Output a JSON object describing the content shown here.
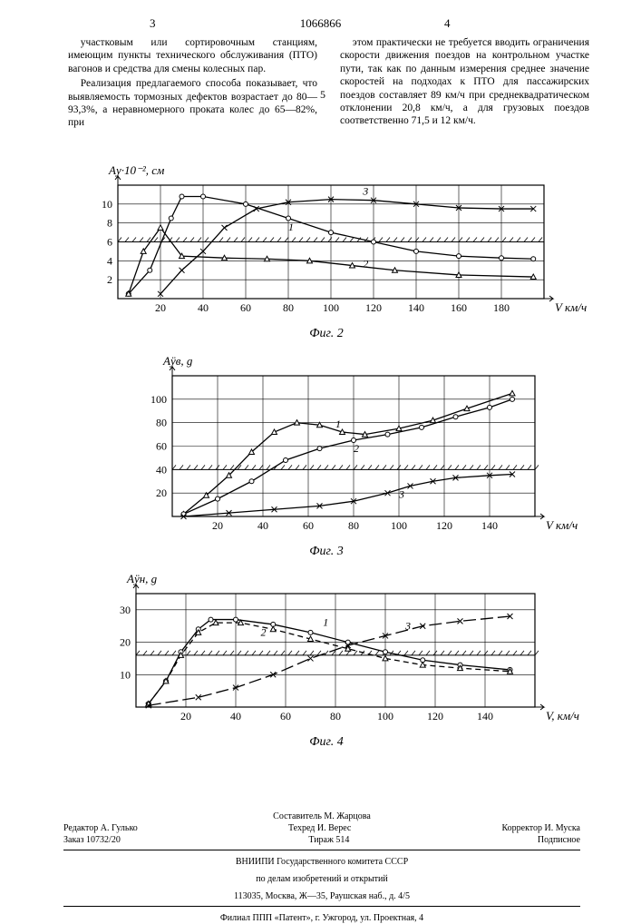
{
  "doc_number": "1066866",
  "col_left_num": "3",
  "col_right_num": "4",
  "body": {
    "left_p1": "участковым или сортировочным станциям, имеющим пункты технического обслуживания (ПТО) вагонов и средства для смены колесных пар.",
    "left_p2": "Реализация предлагаемого способа показывает, что выявляемость тормозных дефектов возрастает до 80—93,3%, а неравномерного проката колес до 65—82%, при",
    "right_p1": "этом практически не требуется вводить ограничения скорости движения поездов на контрольном участке пути, так как по данным измерения среднее значение скоростей на подходах к ПТО для пассажирских поездов составляет 89 км/ч при среднеквадратическом отклонении 20,8 км/ч, а для грузовых поездов соответственно 71,5 и 12 км/ч."
  },
  "between_marker": "5",
  "charts": {
    "fig2": {
      "y_axis_label": "Aу·10⁻², см",
      "x_axis_label": "V км/ч",
      "x_ticks": [
        20,
        40,
        60,
        80,
        100,
        120,
        140,
        160,
        180
      ],
      "y_ticks": [
        2,
        4,
        6,
        8,
        10
      ],
      "xlim": [
        0,
        200
      ],
      "ylim": [
        0,
        12
      ],
      "threshold_y": 6,
      "grid_color": "#000000",
      "curves": {
        "1": {
          "marker": "circle",
          "points": [
            [
              5,
              0.5
            ],
            [
              15,
              3
            ],
            [
              25,
              8.5
            ],
            [
              30,
              10.8
            ],
            [
              40,
              10.8
            ],
            [
              60,
              10
            ],
            [
              80,
              8.5
            ],
            [
              100,
              7
            ],
            [
              120,
              6
            ],
            [
              140,
              5
            ],
            [
              160,
              4.5
            ],
            [
              180,
              4.3
            ],
            [
              195,
              4.2
            ]
          ]
        },
        "2": {
          "marker": "triangle",
          "points": [
            [
              5,
              0.5
            ],
            [
              12,
              5
            ],
            [
              20,
              7.5
            ],
            [
              30,
              4.5
            ],
            [
              50,
              4.3
            ],
            [
              70,
              4.2
            ],
            [
              90,
              4.0
            ],
            [
              110,
              3.5
            ],
            [
              130,
              3.0
            ],
            [
              160,
              2.5
            ],
            [
              195,
              2.3
            ]
          ]
        },
        "3": {
          "marker": "x",
          "points": [
            [
              20,
              0.5
            ],
            [
              30,
              3
            ],
            [
              40,
              5
            ],
            [
              50,
              7.5
            ],
            [
              65,
              9.5
            ],
            [
              80,
              10.2
            ],
            [
              100,
              10.5
            ],
            [
              120,
              10.4
            ],
            [
              140,
              10
            ],
            [
              160,
              9.6
            ],
            [
              180,
              9.5
            ],
            [
              195,
              9.5
            ]
          ]
        }
      },
      "label_positions": {
        "1": [
          80,
          7.2
        ],
        "2": [
          115,
          3.3
        ],
        "3": [
          115,
          11.0
        ]
      },
      "caption": "Фиг. 2"
    },
    "fig3": {
      "y_axis_label": "Aÿв, g",
      "x_axis_label": "V км/ч",
      "x_ticks": [
        20,
        40,
        60,
        80,
        100,
        120,
        140
      ],
      "y_ticks": [
        20,
        40,
        60,
        80,
        100
      ],
      "xlim": [
        0,
        160
      ],
      "ylim": [
        0,
        120
      ],
      "threshold_y": 40,
      "grid_color": "#000000",
      "curves": {
        "1": {
          "marker": "triangle",
          "points": [
            [
              5,
              2
            ],
            [
              15,
              18
            ],
            [
              25,
              35
            ],
            [
              35,
              55
            ],
            [
              45,
              72
            ],
            [
              55,
              80
            ],
            [
              65,
              78
            ],
            [
              75,
              72
            ],
            [
              85,
              70
            ],
            [
              100,
              75
            ],
            [
              115,
              82
            ],
            [
              130,
              92
            ],
            [
              150,
              105
            ]
          ]
        },
        "2": {
          "marker": "circle",
          "points": [
            [
              5,
              2
            ],
            [
              20,
              15
            ],
            [
              35,
              30
            ],
            [
              50,
              48
            ],
            [
              65,
              58
            ],
            [
              80,
              65
            ],
            [
              95,
              70
            ],
            [
              110,
              76
            ],
            [
              125,
              85
            ],
            [
              140,
              93
            ],
            [
              150,
              100
            ]
          ]
        },
        "3": {
          "marker": "x",
          "points": [
            [
              5,
              0
            ],
            [
              25,
              3
            ],
            [
              45,
              6
            ],
            [
              65,
              9
            ],
            [
              80,
              13
            ],
            [
              95,
              20
            ],
            [
              105,
              26
            ],
            [
              115,
              30
            ],
            [
              125,
              33
            ],
            [
              140,
              35
            ],
            [
              150,
              36
            ]
          ]
        }
      },
      "label_positions": {
        "1": [
          72,
          76
        ],
        "2": [
          80,
          55
        ],
        "3": [
          100,
          16
        ]
      },
      "caption": "Фиг. 3"
    },
    "fig4": {
      "y_axis_label": "Aÿн, g",
      "x_axis_label": "V, км/ч",
      "x_ticks": [
        20,
        40,
        60,
        80,
        100,
        120,
        140
      ],
      "y_ticks": [
        10,
        20,
        30
      ],
      "xlim": [
        0,
        160
      ],
      "ylim": [
        0,
        35
      ],
      "threshold_y": 16,
      "grid_color": "#000000",
      "curves": {
        "1": {
          "marker": "circle",
          "points": [
            [
              5,
              1
            ],
            [
              12,
              8
            ],
            [
              18,
              17
            ],
            [
              25,
              24
            ],
            [
              30,
              27
            ],
            [
              40,
              27
            ],
            [
              55,
              25.5
            ],
            [
              70,
              23
            ],
            [
              85,
              20
            ],
            [
              100,
              17
            ],
            [
              115,
              14.5
            ],
            [
              130,
              13
            ],
            [
              150,
              11.5
            ]
          ]
        },
        "2": {
          "marker": "triangle",
          "dash": true,
          "points": [
            [
              5,
              1
            ],
            [
              12,
              8
            ],
            [
              18,
              16
            ],
            [
              25,
              23
            ],
            [
              32,
              26
            ],
            [
              42,
              26
            ],
            [
              55,
              24
            ],
            [
              70,
              21
            ],
            [
              85,
              18
            ],
            [
              100,
              15
            ],
            [
              115,
              13
            ],
            [
              130,
              12
            ],
            [
              150,
              11
            ]
          ]
        },
        "3": {
          "marker": "x",
          "dash_long": true,
          "points": [
            [
              5,
              0.5
            ],
            [
              25,
              3
            ],
            [
              40,
              6
            ],
            [
              55,
              10
            ],
            [
              70,
              15
            ],
            [
              85,
              19
            ],
            [
              100,
              22
            ],
            [
              115,
              25
            ],
            [
              130,
              26.5
            ],
            [
              150,
              28
            ]
          ]
        }
      },
      "label_positions": {
        "1": [
          75,
          25
        ],
        "2": [
          50,
          22
        ],
        "3": [
          108,
          24
        ]
      },
      "caption": "Фиг. 4"
    }
  },
  "footer": {
    "compiler": "Составитель М. Жарцова",
    "editor": "Редактор А. Гулько",
    "techred": "Техред И. Верес",
    "corrector": "Корректор И. Муска",
    "order": "Заказ 10732/20",
    "tirage": "Тираж 514",
    "subscribed": "Подписное",
    "org1": "ВНИИПИ Государственного комитета СССР",
    "org2": "по делам изобретений и открытий",
    "addr1": "113035, Москва, Ж—35, Раушская наб., д. 4/5",
    "addr2": "Филиал ППП «Патент», г. Ужгород, ул. Проектная, 4"
  }
}
